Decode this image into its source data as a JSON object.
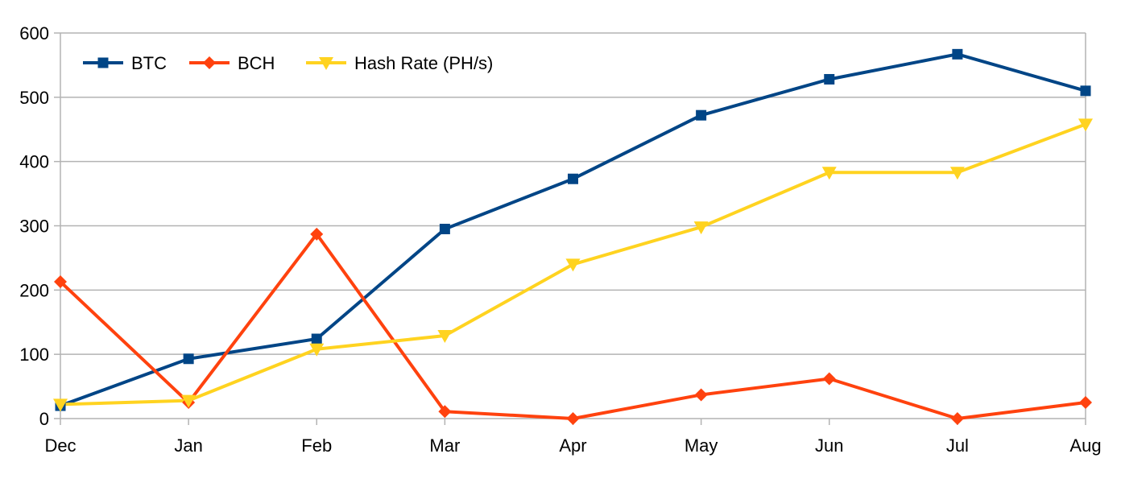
{
  "chart_data": {
    "type": "line",
    "categories": [
      "Dec",
      "Jan",
      "Feb",
      "Mar",
      "Apr",
      "May",
      "Jun",
      "Jul",
      "Aug"
    ],
    "series": [
      {
        "name": "BTC",
        "values": [
          20,
          93,
          124,
          295,
          373,
          472,
          528,
          567,
          510
        ],
        "color": "#004586",
        "marker": "square"
      },
      {
        "name": "BCH",
        "values": [
          213,
          25,
          287,
          11,
          0,
          37,
          62,
          0,
          25
        ],
        "color": "#ff420e",
        "marker": "diamond"
      },
      {
        "name": "Hash Rate (PH/s)",
        "values": [
          22,
          28,
          108,
          129,
          240,
          298,
          383,
          383,
          458
        ],
        "color": "#ffd320",
        "marker": "triangle-down"
      }
    ],
    "ylim": [
      0,
      600
    ],
    "yticks": [
      0,
      100,
      200,
      300,
      400,
      500,
      600
    ],
    "grid": true,
    "legend_position": "top-left",
    "colors": {
      "grid": "#b3b3b3",
      "axis": "#b3b3b3"
    }
  }
}
